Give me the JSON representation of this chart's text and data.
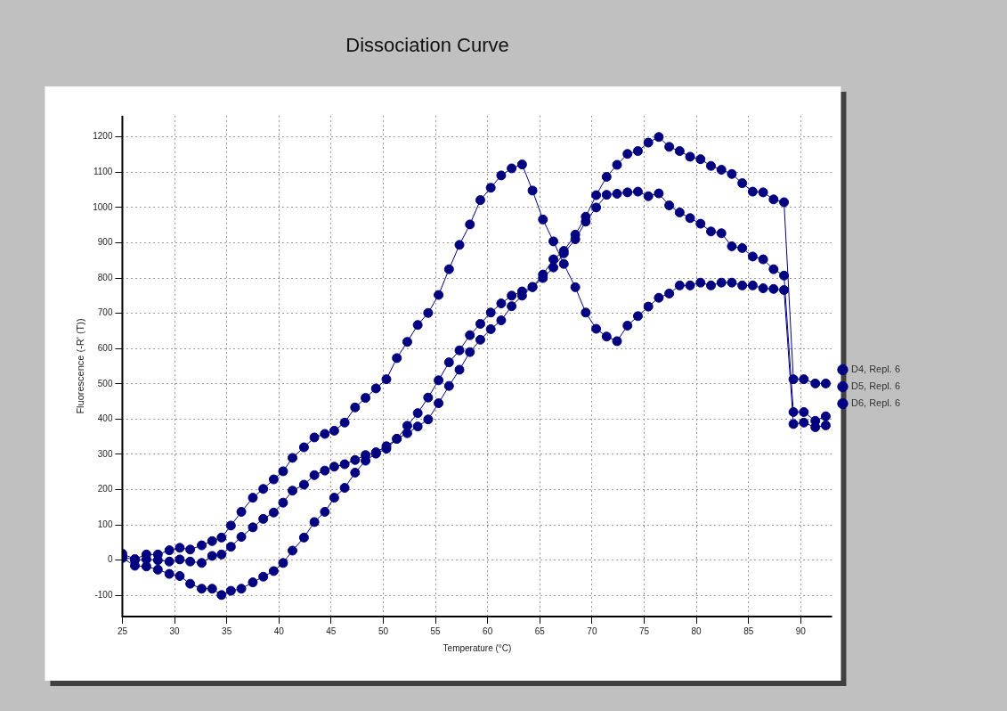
{
  "chart_data": {
    "type": "line",
    "title": "Dissociation Curve",
    "xlabel": "Temperature (°C)",
    "ylabel": "Fluorescence (-R' (T))",
    "x": [
      25.0,
      26.2,
      27.3,
      28.4,
      29.5,
      30.5,
      31.5,
      32.6,
      33.6,
      34.5,
      35.4,
      36.4,
      37.5,
      38.5,
      39.5,
      40.4,
      41.3,
      42.4,
      43.4,
      44.4,
      45.3,
      46.3,
      47.3,
      48.3,
      49.3,
      50.3,
      51.3,
      52.3,
      53.3,
      54.3,
      55.3,
      56.3,
      57.3,
      58.3,
      59.3,
      60.3,
      61.3,
      62.3,
      63.3,
      64.3,
      65.3,
      66.3,
      67.3,
      68.4,
      69.4,
      70.4,
      71.4,
      72.4,
      73.4,
      74.4,
      75.4,
      76.4,
      77.4,
      78.4,
      79.4,
      80.4,
      81.4,
      82.4,
      83.4,
      84.4,
      85.4,
      86.4,
      87.4,
      88.4,
      89.3,
      90.3,
      91.4,
      92.4
    ],
    "series": [
      {
        "name": "D4, Repl. 6",
        "color": "#000080",
        "values": [
          18,
          3,
          16,
          16,
          28,
          35,
          30,
          42,
          54,
          64,
          98,
          137,
          177,
          202,
          229,
          252,
          290,
          320,
          348,
          358,
          367,
          390,
          433,
          460,
          487,
          513,
          573,
          619,
          667,
          701,
          752,
          825,
          894,
          952,
          1021,
          1056,
          1091,
          1111,
          1122,
          1048,
          966,
          904,
          840,
          774,
          702,
          656,
          634,
          621,
          665,
          692,
          719,
          744,
          756,
          779,
          779,
          787,
          779,
          787,
          787,
          779,
          779,
          771,
          769,
          766,
          386,
          390,
          377,
          382
        ]
      },
      {
        "name": "D5, Repl. 6",
        "color": "#000080",
        "values": [
          10,
          0,
          2,
          0,
          -4,
          2,
          -4,
          -8,
          12,
          16,
          38,
          66,
          93,
          117,
          135,
          163,
          197,
          214,
          241,
          254,
          265,
          272,
          284,
          298,
          306,
          323,
          344,
          381,
          417,
          461,
          510,
          561,
          595,
          638,
          670,
          702,
          728,
          750,
          762,
          774,
          810,
          853,
          877,
          923,
          974,
          1035,
          1087,
          1121,
          1152,
          1160,
          1184,
          1200,
          1172,
          1160,
          1144,
          1137,
          1118,
          1107,
          1095,
          1069,
          1045,
          1043,
          1023,
          1015,
          513,
          513,
          501,
          501
        ]
      },
      {
        "name": "D6, Repl. 6",
        "color": "#000080",
        "values": [
          6,
          -16,
          -18,
          -27,
          -39,
          -45,
          -67,
          -81,
          -81,
          -99,
          -87,
          -81,
          -63,
          -47,
          -31,
          -8,
          27,
          64,
          108,
          137,
          177,
          205,
          248,
          282,
          302,
          316,
          344,
          360,
          379,
          399,
          445,
          494,
          540,
          590,
          625,
          655,
          680,
          720,
          750,
          775,
          800,
          830,
          870,
          910,
          960,
          1000,
          1036,
          1039,
          1043,
          1045,
          1032,
          1040,
          1006,
          986,
          970,
          954,
          932,
          927,
          890,
          885,
          861,
          853,
          825,
          807,
          420,
          420,
          395,
          408
        ]
      }
    ],
    "xlim": [
      25,
      93
    ],
    "xticks": [
      25,
      30,
      35,
      40,
      45,
      50,
      55,
      60,
      65,
      70,
      75,
      80,
      85,
      90
    ],
    "ylim": [
      -160,
      1260
    ],
    "yticks": [
      -100,
      0,
      100,
      200,
      300,
      400,
      500,
      600,
      700,
      800,
      900,
      1000,
      1100,
      1200
    ],
    "grid": true,
    "legend": "right",
    "marker": "circle",
    "line_style": "solid"
  }
}
